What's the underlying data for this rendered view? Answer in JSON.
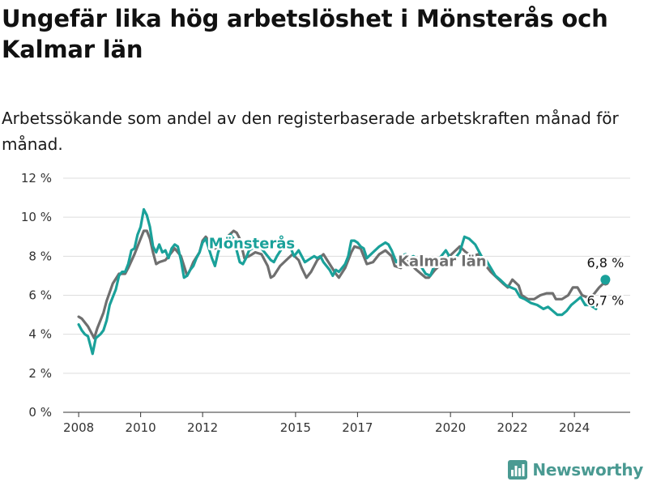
{
  "title": "Ungefär lika hög arbetslöshet i Mönsterås och Kalmar län",
  "subtitle": "Arbetssökande som andel av den registerbaserade arbetskraften månad för månad.",
  "brand": {
    "name": "Newsworthy",
    "icon": "bar-chart-logo-icon",
    "color": "#4a9a92"
  },
  "chart_data": {
    "type": "line",
    "title": "Ungefär lika hög arbetslöshet i Mönsterås och Kalmar län",
    "subtitle": "Arbetssökande som andel av den registerbaserade arbetskraften månad för månad.",
    "xlabel": "",
    "ylabel": "",
    "xlim": [
      2007.5,
      2025.8
    ],
    "ylim": [
      0,
      12
    ],
    "yticks": [
      0,
      2,
      4,
      6,
      8,
      10,
      12
    ],
    "ytick_labels": [
      "0 %",
      "2 %",
      "4 %",
      "6 %",
      "8 %",
      "10 %",
      "12 %"
    ],
    "xticks": [
      2008,
      2010,
      2012,
      2015,
      2017,
      2020,
      2022,
      2024
    ],
    "xtick_labels": [
      "2008",
      "2010",
      "2012",
      "2015",
      "2017",
      "2020",
      "2022",
      "2024"
    ],
    "grid": "horizontal",
    "series": [
      {
        "name": "Kalmar län",
        "color": "#6f6f6f",
        "end_label": "6,7 %",
        "points": [
          [
            2008.0,
            4.9
          ],
          [
            2008.1,
            4.8
          ],
          [
            2008.3,
            4.4
          ],
          [
            2008.5,
            3.8
          ],
          [
            2008.6,
            4.3
          ],
          [
            2008.8,
            5.1
          ],
          [
            2008.9,
            5.7
          ],
          [
            2009.1,
            6.6
          ],
          [
            2009.3,
            7.1
          ],
          [
            2009.5,
            7.1
          ],
          [
            2009.6,
            7.4
          ],
          [
            2009.8,
            8.1
          ],
          [
            2010.0,
            8.9
          ],
          [
            2010.1,
            9.3
          ],
          [
            2010.2,
            9.3
          ],
          [
            2010.3,
            8.9
          ],
          [
            2010.4,
            8.2
          ],
          [
            2010.5,
            7.6
          ],
          [
            2010.6,
            7.7
          ],
          [
            2010.8,
            7.8
          ],
          [
            2010.9,
            8.0
          ],
          [
            2011.0,
            8.2
          ],
          [
            2011.1,
            8.4
          ],
          [
            2011.3,
            8.0
          ],
          [
            2011.4,
            7.5
          ],
          [
            2011.5,
            7.0
          ],
          [
            2011.6,
            7.3
          ],
          [
            2011.7,
            7.7
          ],
          [
            2011.9,
            8.2
          ],
          [
            2012.0,
            8.8
          ],
          [
            2012.1,
            9.0
          ],
          [
            2012.2,
            8.8
          ],
          [
            2012.4,
            8.4
          ],
          [
            2012.6,
            8.6
          ],
          [
            2012.8,
            9.0
          ],
          [
            2013.0,
            9.3
          ],
          [
            2013.1,
            9.2
          ],
          [
            2013.2,
            8.9
          ],
          [
            2013.35,
            7.9
          ],
          [
            2013.5,
            8.0
          ],
          [
            2013.7,
            8.2
          ],
          [
            2013.9,
            8.1
          ],
          [
            2014.1,
            7.5
          ],
          [
            2014.2,
            6.9
          ],
          [
            2014.3,
            7.0
          ],
          [
            2014.5,
            7.5
          ],
          [
            2014.7,
            7.8
          ],
          [
            2014.9,
            8.1
          ],
          [
            2015.1,
            7.8
          ],
          [
            2015.2,
            7.4
          ],
          [
            2015.35,
            6.9
          ],
          [
            2015.5,
            7.2
          ],
          [
            2015.7,
            7.8
          ],
          [
            2015.9,
            8.1
          ],
          [
            2016.1,
            7.6
          ],
          [
            2016.3,
            7.1
          ],
          [
            2016.4,
            6.9
          ],
          [
            2016.6,
            7.4
          ],
          [
            2016.8,
            8.2
          ],
          [
            2016.9,
            8.5
          ],
          [
            2017.1,
            8.4
          ],
          [
            2017.2,
            8.0
          ],
          [
            2017.3,
            7.6
          ],
          [
            2017.5,
            7.7
          ],
          [
            2017.7,
            8.1
          ],
          [
            2017.9,
            8.3
          ],
          [
            2018.1,
            8.0
          ],
          [
            2018.2,
            7.5
          ],
          [
            2018.4,
            7.4
          ],
          [
            2018.55,
            7.8
          ],
          [
            2018.7,
            7.6
          ],
          [
            2018.9,
            7.3
          ],
          [
            2019.05,
            7.1
          ],
          [
            2019.2,
            6.9
          ],
          [
            2019.3,
            6.9
          ],
          [
            2019.5,
            7.3
          ],
          [
            2019.7,
            7.6
          ],
          [
            2019.9,
            7.9
          ],
          [
            2020.1,
            8.2
          ],
          [
            2020.3,
            8.5
          ],
          [
            2020.5,
            8.2
          ],
          [
            2020.7,
            8.0
          ],
          [
            2020.9,
            8.1
          ],
          [
            2021.1,
            7.6
          ],
          [
            2021.3,
            7.2
          ],
          [
            2021.5,
            6.9
          ],
          [
            2021.7,
            6.6
          ],
          [
            2021.85,
            6.4
          ],
          [
            2022.0,
            6.8
          ],
          [
            2022.2,
            6.5
          ],
          [
            2022.3,
            6.0
          ],
          [
            2022.5,
            5.8
          ],
          [
            2022.7,
            5.8
          ],
          [
            2022.9,
            6.0
          ],
          [
            2023.1,
            6.1
          ],
          [
            2023.3,
            6.1
          ],
          [
            2023.4,
            5.8
          ],
          [
            2023.6,
            5.8
          ],
          [
            2023.8,
            6.0
          ],
          [
            2023.95,
            6.4
          ],
          [
            2024.1,
            6.4
          ],
          [
            2024.25,
            6.0
          ],
          [
            2024.4,
            5.9
          ],
          [
            2024.6,
            6.0
          ],
          [
            2024.8,
            6.4
          ],
          [
            2025.0,
            6.7
          ]
        ]
      },
      {
        "name": "Mönsterås",
        "color": "#1aa19a",
        "end_label": "6,8 %",
        "points": [
          [
            2008.0,
            4.5
          ],
          [
            2008.1,
            4.2
          ],
          [
            2008.2,
            4.0
          ],
          [
            2008.3,
            3.9
          ],
          [
            2008.4,
            3.3
          ],
          [
            2008.45,
            3.0
          ],
          [
            2008.55,
            3.8
          ],
          [
            2008.7,
            4.0
          ],
          [
            2008.8,
            4.2
          ],
          [
            2008.9,
            4.7
          ],
          [
            2009.0,
            5.5
          ],
          [
            2009.1,
            5.9
          ],
          [
            2009.2,
            6.3
          ],
          [
            2009.3,
            7.0
          ],
          [
            2009.4,
            7.2
          ],
          [
            2009.5,
            7.2
          ],
          [
            2009.6,
            7.6
          ],
          [
            2009.7,
            8.3
          ],
          [
            2009.8,
            8.4
          ],
          [
            2009.9,
            9.1
          ],
          [
            2010.0,
            9.5
          ],
          [
            2010.1,
            10.4
          ],
          [
            2010.2,
            10.1
          ],
          [
            2010.3,
            9.5
          ],
          [
            2010.4,
            8.5
          ],
          [
            2010.5,
            8.2
          ],
          [
            2010.6,
            8.6
          ],
          [
            2010.7,
            8.2
          ],
          [
            2010.8,
            8.3
          ],
          [
            2010.9,
            7.9
          ],
          [
            2011.0,
            8.4
          ],
          [
            2011.1,
            8.6
          ],
          [
            2011.2,
            8.5
          ],
          [
            2011.3,
            7.8
          ],
          [
            2011.4,
            6.9
          ],
          [
            2011.5,
            7.0
          ],
          [
            2011.6,
            7.3
          ],
          [
            2011.7,
            7.5
          ],
          [
            2011.8,
            7.9
          ],
          [
            2011.9,
            8.2
          ],
          [
            2012.0,
            8.7
          ],
          [
            2012.1,
            8.9
          ],
          [
            2012.2,
            8.4
          ],
          [
            2012.3,
            7.9
          ],
          [
            2012.4,
            7.5
          ],
          [
            2012.5,
            8.2
          ],
          [
            2012.6,
            8.6
          ],
          [
            2012.7,
            8.8
          ],
          [
            2012.8,
            9.0
          ],
          [
            2012.9,
            9.1
          ],
          [
            2013.0,
            8.9
          ],
          [
            2013.1,
            8.3
          ],
          [
            2013.2,
            7.7
          ],
          [
            2013.3,
            7.6
          ],
          [
            2013.4,
            7.9
          ],
          [
            2013.5,
            8.3
          ],
          [
            2013.7,
            8.5
          ],
          [
            2013.9,
            8.4
          ],
          [
            2014.1,
            8.0
          ],
          [
            2014.2,
            7.8
          ],
          [
            2014.3,
            7.7
          ],
          [
            2014.4,
            8.0
          ],
          [
            2014.6,
            8.5
          ],
          [
            2014.8,
            8.6
          ],
          [
            2014.95,
            8.0
          ],
          [
            2015.1,
            8.3
          ],
          [
            2015.3,
            7.7
          ],
          [
            2015.5,
            7.9
          ],
          [
            2015.6,
            8.0
          ],
          [
            2015.7,
            7.9
          ],
          [
            2015.8,
            8.0
          ],
          [
            2015.9,
            7.7
          ],
          [
            2016.1,
            7.3
          ],
          [
            2016.2,
            7.0
          ],
          [
            2016.3,
            7.3
          ],
          [
            2016.4,
            7.2
          ],
          [
            2016.6,
            7.6
          ],
          [
            2016.7,
            8.0
          ],
          [
            2016.8,
            8.8
          ],
          [
            2016.9,
            8.8
          ],
          [
            2017.0,
            8.7
          ],
          [
            2017.1,
            8.5
          ],
          [
            2017.2,
            8.4
          ],
          [
            2017.3,
            7.9
          ],
          [
            2017.5,
            8.2
          ],
          [
            2017.7,
            8.5
          ],
          [
            2017.9,
            8.7
          ],
          [
            2018.0,
            8.6
          ],
          [
            2018.1,
            8.3
          ],
          [
            2018.25,
            7.7
          ],
          [
            2018.4,
            8.0
          ],
          [
            2018.55,
            8.1
          ],
          [
            2018.7,
            7.9
          ],
          [
            2018.8,
            8.0
          ],
          [
            2018.9,
            7.9
          ],
          [
            2019.0,
            7.6
          ],
          [
            2019.2,
            7.1
          ],
          [
            2019.35,
            7.0
          ],
          [
            2019.5,
            7.6
          ],
          [
            2019.7,
            8.0
          ],
          [
            2019.85,
            8.3
          ],
          [
            2020.0,
            7.9
          ],
          [
            2020.15,
            7.9
          ],
          [
            2020.3,
            8.2
          ],
          [
            2020.45,
            9.0
          ],
          [
            2020.6,
            8.9
          ],
          [
            2020.8,
            8.6
          ],
          [
            2021.0,
            8.0
          ],
          [
            2021.15,
            7.8
          ],
          [
            2021.3,
            7.4
          ],
          [
            2021.45,
            7.0
          ],
          [
            2021.6,
            6.8
          ],
          [
            2021.8,
            6.5
          ],
          [
            2021.95,
            6.4
          ],
          [
            2022.1,
            6.3
          ],
          [
            2022.25,
            5.9
          ],
          [
            2022.4,
            5.8
          ],
          [
            2022.6,
            5.6
          ],
          [
            2022.8,
            5.5
          ],
          [
            2023.0,
            5.3
          ],
          [
            2023.15,
            5.4
          ],
          [
            2023.3,
            5.2
          ],
          [
            2023.45,
            5.0
          ],
          [
            2023.6,
            5.0
          ],
          [
            2023.75,
            5.2
          ],
          [
            2023.9,
            5.5
          ],
          [
            2024.05,
            5.7
          ],
          [
            2024.2,
            5.9
          ],
          [
            2024.35,
            5.5
          ],
          [
            2024.5,
            5.5
          ],
          [
            2024.6,
            5.4
          ],
          [
            2024.7,
            5.3
          ]
        ],
        "end_point": [
          2025.0,
          6.8
        ]
      }
    ],
    "annotations": [
      {
        "text": "Mönsterås",
        "series": "Mönsterås",
        "at": [
          2012.2,
          8.4
        ]
      },
      {
        "text": "Kalmar län",
        "series": "Kalmar län",
        "at": [
          2018.3,
          7.5
        ]
      }
    ]
  }
}
